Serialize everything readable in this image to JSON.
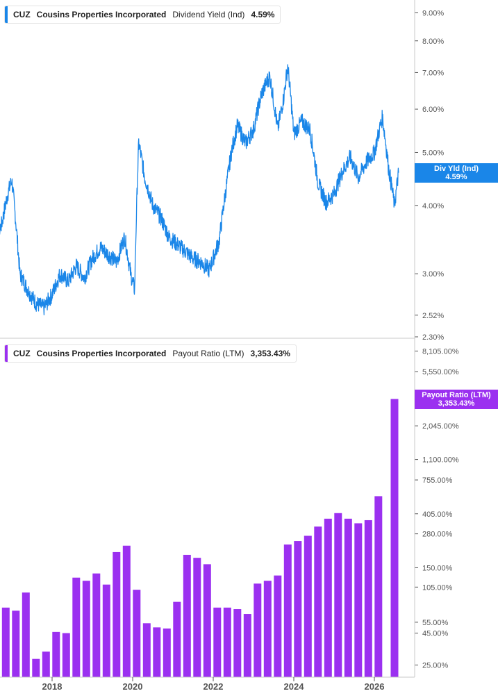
{
  "colors": {
    "yield": "#1a86e8",
    "payout": "#9b30f0",
    "axis": "#555555",
    "divider": "#c8c8c8"
  },
  "legend_top": {
    "ticker": "CUZ",
    "company": "Cousins Properties Incorporated",
    "metric": "Dividend Yield (Ind)",
    "value": "4.59%"
  },
  "legend_bottom": {
    "ticker": "CUZ",
    "company": "Cousins Properties Incorporated",
    "metric": "Payout Ratio (LTM)",
    "value": "3,353.43%"
  },
  "badge_top": {
    "label": "Div Yld (Ind)",
    "value": "4.59%"
  },
  "badge_bottom": {
    "label": "Payout Ratio (LTM)",
    "value": "3,353.43%"
  },
  "chart_data": [
    {
      "type": "line",
      "series_name": "Dividend Yield (Ind)",
      "scale": "log",
      "ylim": [
        2.3,
        9.5
      ],
      "ytick_labels": [
        "9.00%",
        "8.00%",
        "7.00%",
        "6.00%",
        "5.00%",
        "4.00%",
        "3.00%",
        "2.52%",
        "2.30%"
      ],
      "ytick_values": [
        9.0,
        8.0,
        7.0,
        6.0,
        5.0,
        4.0,
        3.0,
        2.52,
        2.3
      ],
      "x": [
        2016.5,
        2016.62,
        2016.75,
        2016.9,
        2017.0,
        2017.2,
        2017.4,
        2017.6,
        2017.8,
        2018.0,
        2018.2,
        2018.4,
        2018.6,
        2018.8,
        2019.0,
        2019.2,
        2019.4,
        2019.6,
        2019.8,
        2019.95,
        2020.05,
        2020.15,
        2020.3,
        2020.5,
        2020.7,
        2020.9,
        2021.1,
        2021.3,
        2021.5,
        2021.7,
        2021.9,
        2022.0,
        2022.15,
        2022.3,
        2022.45,
        2022.6,
        2022.8,
        2023.0,
        2023.2,
        2023.4,
        2023.6,
        2023.75,
        2023.85,
        2024.0,
        2024.2,
        2024.4,
        2024.6,
        2024.8,
        2025.0,
        2025.2,
        2025.4,
        2025.6,
        2025.8,
        2026.0,
        2026.2,
        2026.35,
        2026.5,
        2026.6
      ],
      "y": [
        3.3,
        3.5,
        3.7,
        4.2,
        4.45,
        3.0,
        2.8,
        2.65,
        2.6,
        2.75,
        3.0,
        2.9,
        3.1,
        2.95,
        3.2,
        3.35,
        3.25,
        3.15,
        3.5,
        3.0,
        2.8,
        5.2,
        4.5,
        4.0,
        3.8,
        3.5,
        3.4,
        3.3,
        3.2,
        3.15,
        3.05,
        3.2,
        3.45,
        4.2,
        5.0,
        5.6,
        5.2,
        5.5,
        6.4,
        6.9,
        5.5,
        6.3,
        7.2,
        5.4,
        5.7,
        5.5,
        4.4,
        4.05,
        4.2,
        4.6,
        4.9,
        4.5,
        4.8,
        5.0,
        5.8,
        4.7,
        4.0,
        4.59
      ]
    },
    {
      "type": "bar",
      "series_name": "Payout Ratio (LTM)",
      "scale": "log",
      "ylim": [
        20,
        10000
      ],
      "ytick_labels": [
        "8,105.00%",
        "5,550.00%",
        "2,045.00%",
        "1,100.00%",
        "755.00%",
        "405.00%",
        "280.00%",
        "150.00%",
        "105.00%",
        "55.00%",
        "45.00%",
        "25.00%"
      ],
      "ytick_values": [
        8105,
        5550,
        2045,
        1100,
        755,
        405,
        280,
        150,
        105,
        55,
        45,
        25
      ],
      "x": [
        2016.6,
        2016.85,
        2017.1,
        2017.35,
        2017.6,
        2017.85,
        2018.1,
        2018.35,
        2018.6,
        2018.85,
        2019.1,
        2019.35,
        2019.6,
        2019.85,
        2020.1,
        2020.35,
        2020.6,
        2020.85,
        2021.1,
        2021.35,
        2021.6,
        2021.85,
        2022.1,
        2022.35,
        2022.6,
        2022.85,
        2023.1,
        2023.35,
        2023.6,
        2023.85,
        2024.1,
        2024.35,
        2024.6,
        2024.85,
        2025.1,
        2025.35,
        2025.6,
        2025.85,
        2026.1,
        2026.5
      ],
      "values": [
        77,
        72,
        68,
        95,
        28,
        32,
        46,
        45,
        125,
        118,
        135,
        110,
        200,
        225,
        100,
        54,
        50,
        49,
        80,
        190,
        180,
        160,
        72,
        72,
        70,
        64,
        112,
        118,
        130,
        230,
        245,
        270,
        320,
        370,
        410,
        370,
        340,
        360,
        560,
        3353.43
      ]
    }
  ],
  "x_axis": {
    "tick_labels": [
      "2018",
      "2020",
      "2022",
      "2024",
      "2026"
    ],
    "tick_values": [
      2018,
      2020,
      2022,
      2024,
      2026
    ]
  }
}
